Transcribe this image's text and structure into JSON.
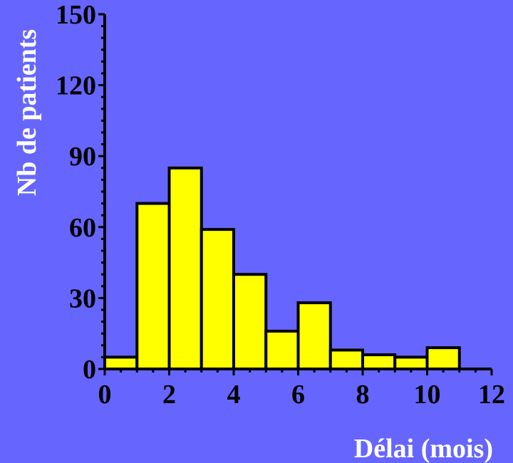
{
  "chart_data": {
    "type": "bar",
    "chart_subtype": "histogram",
    "xlabel": "Délai (mois)",
    "ylabel": "Nb de patients",
    "xlim": [
      0,
      12
    ],
    "ylim": [
      0,
      150
    ],
    "x_ticks": [
      "0",
      "2",
      "4",
      "6",
      "8",
      "10",
      "12"
    ],
    "y_ticks": [
      "0",
      "30",
      "60",
      "90",
      "120",
      "150"
    ],
    "bins": [
      {
        "start": 0,
        "end": 1,
        "value": 5
      },
      {
        "start": 1,
        "end": 2,
        "value": 70
      },
      {
        "start": 2,
        "end": 3,
        "value": 85
      },
      {
        "start": 3,
        "end": 4,
        "value": 59
      },
      {
        "start": 4,
        "end": 5,
        "value": 40
      },
      {
        "start": 5,
        "end": 6,
        "value": 16
      },
      {
        "start": 6,
        "end": 7,
        "value": 28
      },
      {
        "start": 7,
        "end": 8,
        "value": 8
      },
      {
        "start": 8,
        "end": 9,
        "value": 6
      },
      {
        "start": 9,
        "end": 10,
        "value": 5
      },
      {
        "start": 10,
        "end": 11,
        "value": 9
      }
    ],
    "grid": false,
    "legend": "none"
  },
  "colors": {
    "background": "#6666ff",
    "bar_fill": "#ffff00",
    "bar_stroke": "#000000",
    "axis": "#000000",
    "tick_label": "#000000",
    "axis_title": "#ffffff"
  }
}
